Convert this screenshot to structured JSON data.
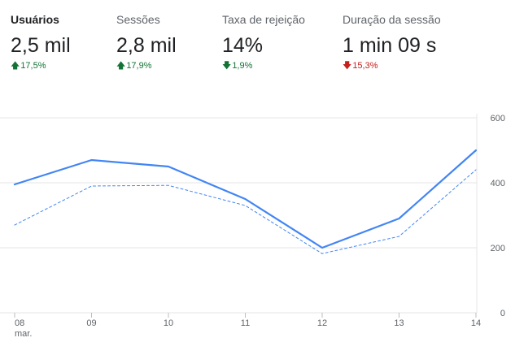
{
  "metrics": [
    {
      "label": "Usuários",
      "value": "2,5 mil",
      "change": "17,5%",
      "direction": "up",
      "color": "#137333",
      "active": true
    },
    {
      "label": "Sessões",
      "value": "2,8 mil",
      "change": "17,9%",
      "direction": "up",
      "color": "#137333",
      "active": false
    },
    {
      "label": "Taxa de rejeição",
      "value": "14%",
      "change": "1,9%",
      "direction": "down",
      "color": "#137333",
      "active": false
    },
    {
      "label": "Duração da sessão",
      "value": "1 min 09 s",
      "change": "15,3%",
      "direction": "down",
      "color": "#c5221f",
      "active": false
    }
  ],
  "chart_data": {
    "type": "line",
    "x": [
      "08",
      "09",
      "10",
      "11",
      "12",
      "13",
      "14"
    ],
    "x_sublabels": [
      "mar.",
      "",
      "",
      "",
      "",
      "",
      ""
    ],
    "ylim": [
      0,
      600
    ],
    "y_ticks": [
      0,
      200,
      400,
      600
    ],
    "y_axis_position": "right",
    "grid": true,
    "series": [
      {
        "style": "solid",
        "color": "#4285f4",
        "values": [
          395,
          470,
          450,
          350,
          200,
          290,
          500
        ]
      },
      {
        "style": "dashed",
        "color": "#4285f4",
        "values": [
          270,
          390,
          392,
          330,
          182,
          235,
          440
        ]
      }
    ]
  }
}
